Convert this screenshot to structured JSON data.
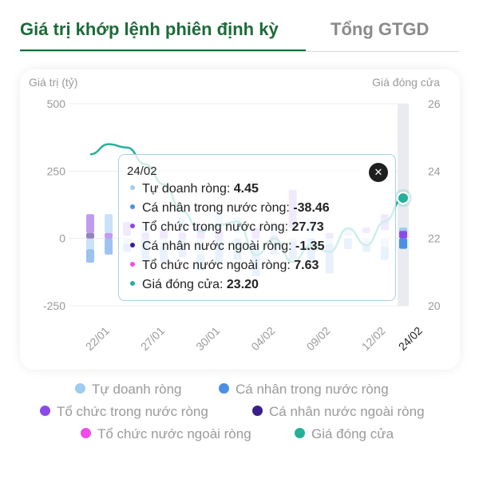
{
  "tabs": {
    "active": "Giá trị khớp lệnh phiên định kỳ",
    "inactive": "Tổng GTGD"
  },
  "chart_data": {
    "type": "bar",
    "y_left_label": "Giá trị (tỷ)",
    "y_right_label": "Giá đóng cửa",
    "y_left_ticks": [
      "500",
      "250",
      "0",
      "-250"
    ],
    "y_right_ticks": [
      "26",
      "24",
      "22",
      "20"
    ],
    "ylim": [
      -250,
      500
    ],
    "y2lim": [
      20,
      26
    ],
    "x_tick_labels": [
      "22/01",
      "27/01",
      "30/01",
      "04/02",
      "09/02",
      "12/02",
      "24/02"
    ],
    "selected_date": "24/02",
    "series": [
      {
        "name": "Tự doanh ròng",
        "color": "#9ecbf0"
      },
      {
        "name": "Cá nhân trong nước ròng",
        "color": "#4a90e2"
      },
      {
        "name": "Tổ chức trong nước ròng",
        "color": "#8a4be8"
      },
      {
        "name": "Cá nhân nước ngoài ròng",
        "color": "#3a1f8a"
      },
      {
        "name": "Tổ chức nước ngoài ròng",
        "color": "#f04be8"
      },
      {
        "name": "Giá đóng cửa",
        "color": "#26b09a"
      }
    ],
    "bars": [
      [
        [
          -40,
          0
        ],
        [
          -90,
          -40
        ],
        [
          20,
          90
        ],
        [
          0,
          20
        ]
      ],
      [
        [
          20,
          90
        ],
        [
          -60,
          0
        ],
        [
          0,
          20
        ]
      ],
      [
        [
          -20,
          0
        ],
        [
          -50,
          -20
        ],
        [
          10,
          60
        ]
      ],
      [
        [
          20,
          50
        ],
        [
          -80,
          0
        ],
        [
          0,
          20
        ]
      ],
      [
        [
          -30,
          0
        ],
        [
          -90,
          -30
        ],
        [
          0,
          30
        ]
      ],
      [
        [
          20,
          80
        ],
        [
          -70,
          0
        ],
        [
          0,
          20
        ]
      ],
      [
        [
          -60,
          0
        ],
        [
          -120,
          -60
        ],
        [
          0,
          40
        ]
      ],
      [
        [
          30,
          100
        ],
        [
          -100,
          0
        ],
        [
          0,
          30
        ]
      ],
      [
        [
          20,
          80
        ],
        [
          -80,
          0
        ]
      ],
      [
        [
          -20,
          0
        ],
        [
          -140,
          -20
        ],
        [
          0,
          40
        ]
      ],
      [
        [
          10,
          60
        ],
        [
          -60,
          0
        ],
        [
          0,
          10
        ]
      ],
      [
        [
          -10,
          0
        ],
        [
          -80,
          -10
        ],
        [
          40,
          180
        ]
      ],
      [
        [
          20,
          70
        ],
        [
          -90,
          0
        ]
      ],
      [
        [
          -20,
          0
        ],
        [
          -130,
          -20
        ],
        [
          0,
          20
        ]
      ],
      [
        [
          10,
          40
        ],
        [
          -40,
          0
        ]
      ],
      [
        [
          -20,
          0
        ],
        [
          -50,
          -20
        ],
        [
          20,
          40
        ]
      ],
      [
        [
          -30,
          0
        ],
        [
          -80,
          -30
        ],
        [
          30,
          90
        ]
      ],
      [
        [
          4.45,
          40
        ],
        [
          -38.46,
          0
        ],
        [
          0,
          27.73
        ]
      ]
    ],
    "close_prices": [
      24.5,
      24.8,
      24.7,
      24.2,
      23.6,
      22.8,
      22.2,
      22.4,
      22.5,
      21.5,
      22.0,
      21.3,
      21.8,
      21.6,
      22.3,
      21.8,
      22.5,
      23.2
    ]
  },
  "tooltip": {
    "date": "24/02",
    "close_icon": "close-icon",
    "rows": [
      {
        "label": "Tự doanh ròng:",
        "value": "4.45",
        "color": "#9ecbf0"
      },
      {
        "label": "Cá nhân trong nước ròng:",
        "value": "-38.46",
        "color": "#4a90e2"
      },
      {
        "label": "Tổ chức trong nước ròng:",
        "value": "27.73",
        "color": "#8a4be8"
      },
      {
        "label": "Cá nhân nước ngoài ròng:",
        "value": "-1.35",
        "color": "#3a1f8a"
      },
      {
        "label": "Tổ chức nước ngoài ròng:",
        "value": "7.63",
        "color": "#f04be8"
      },
      {
        "label": "Giá đóng cửa:",
        "value": "23.20",
        "color": "#26b09a"
      }
    ]
  },
  "legend": [
    {
      "label": "Tự doanh ròng",
      "color": "#9ecbf0"
    },
    {
      "label": "Cá nhân trong nước ròng",
      "color": "#4a90e2"
    },
    {
      "label": "Tổ chức trong nước ròng",
      "color": "#8a4be8"
    },
    {
      "label": "Cá nhân nước ngoài ròng",
      "color": "#3a1f8a"
    },
    {
      "label": "Tổ chức nước ngoài ròng",
      "color": "#f04be8"
    },
    {
      "label": "Giá đóng cửa",
      "color": "#26b09a"
    }
  ]
}
